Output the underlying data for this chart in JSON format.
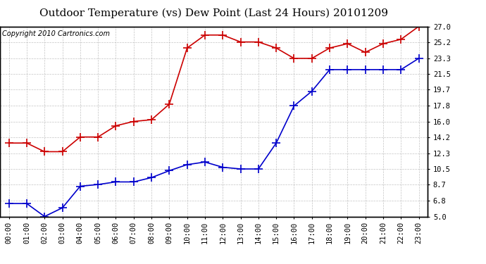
{
  "title": "Outdoor Temperature (vs) Dew Point (Last 24 Hours) 20101209",
  "copyright_text": "Copyright 2010 Cartronics.com",
  "x_labels": [
    "00:00",
    "01:00",
    "02:00",
    "03:00",
    "04:00",
    "05:00",
    "06:00",
    "07:00",
    "08:00",
    "09:00",
    "10:00",
    "11:00",
    "12:00",
    "13:00",
    "14:00",
    "15:00",
    "16:00",
    "17:00",
    "18:00",
    "19:00",
    "20:00",
    "21:00",
    "22:00",
    "23:00"
  ],
  "y_ticks": [
    5.0,
    6.8,
    8.7,
    10.5,
    12.3,
    14.2,
    16.0,
    17.8,
    19.7,
    21.5,
    23.3,
    25.2,
    27.0
  ],
  "ylim": [
    5.0,
    27.0
  ],
  "temp_data": [
    13.5,
    13.5,
    12.5,
    12.5,
    14.2,
    14.2,
    15.5,
    16.0,
    16.2,
    18.0,
    24.5,
    26.0,
    26.0,
    25.2,
    25.2,
    24.5,
    23.3,
    23.3,
    24.5,
    25.0,
    24.0,
    25.0,
    25.5,
    27.0
  ],
  "dew_data": [
    6.5,
    6.5,
    5.0,
    6.0,
    8.5,
    8.7,
    9.0,
    9.0,
    9.5,
    10.3,
    11.0,
    11.3,
    10.7,
    10.5,
    10.5,
    13.5,
    17.8,
    19.5,
    22.0,
    22.0,
    22.0,
    22.0,
    22.0,
    23.3
  ],
  "temp_color": "#cc0000",
  "dew_color": "#0000cc",
  "background_color": "#ffffff",
  "plot_bg_color": "#ffffff",
  "grid_color": "#aaaaaa",
  "title_fontsize": 11,
  "copyright_fontsize": 7,
  "tick_fontsize": 7.5,
  "marker_size": 3.5
}
